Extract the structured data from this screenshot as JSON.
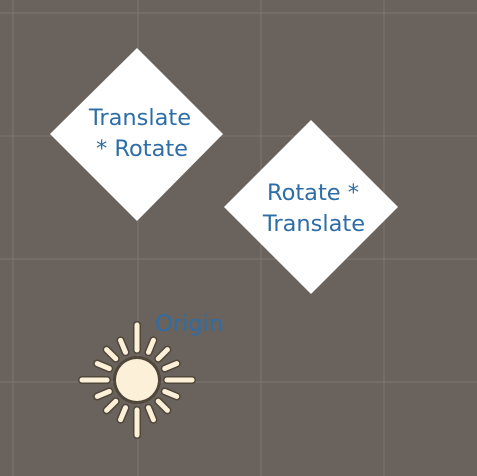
{
  "scene": {
    "nodes": [
      {
        "name": "translate-rotate",
        "label_lines": [
          "Translate",
          "* Rotate"
        ]
      },
      {
        "name": "rotate-translate",
        "label_lines": [
          "Rotate *",
          "Translate"
        ]
      }
    ],
    "origin": {
      "label": "Origin",
      "icon": "sun-icon"
    }
  },
  "colors": {
    "background": "#6a625c",
    "grid": "#7d766f",
    "node_fill": "#ffffff",
    "node_text": "#2e6da6",
    "origin_label": "#2e6da6",
    "sun_fill": "#fcf1d8",
    "sun_outline": "#3a2f1e"
  }
}
